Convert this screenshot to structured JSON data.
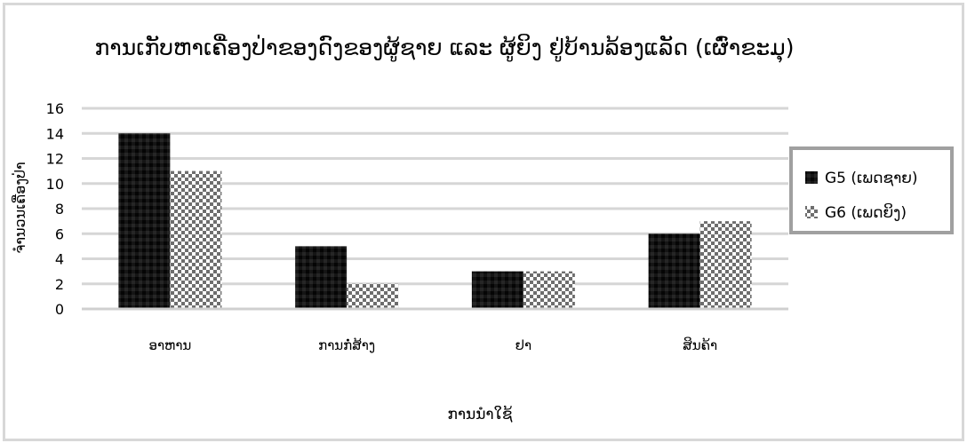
{
  "chart_data": {
    "type": "bar",
    "title": "ການເກັບຫາເຄື່ອງປ່າຂອງດົງຂອງຜູ້ຊາຍ ແລະ ຜູ້ຍິງ ຢູ່ບ້ານລ້ອງແລັດ (ເຜົ່າຂະມຸ)",
    "xlabel": "ການນຳໃຊ້",
    "ylabel": "ຈຳນວນເຄື່ອງປ່າ",
    "categories": [
      "ອາຫານ",
      "ການກໍ່ສ້າງ",
      "ຢາ",
      "ສິນຄ້າ"
    ],
    "series": [
      {
        "name": "G5 (ເພດຊາຍ)",
        "values": [
          14,
          5,
          3,
          6
        ],
        "color": "#111111",
        "pattern": "dark"
      },
      {
        "name": "G6 (ເພດຍິງ)",
        "values": [
          11,
          2,
          3,
          7
        ],
        "color": "#9a9a9a",
        "pattern": "checker"
      }
    ],
    "ylim": [
      0,
      16
    ],
    "yticks": [
      0,
      2,
      4,
      6,
      8,
      10,
      12,
      14,
      16
    ],
    "grid": true,
    "legend_position": "right"
  }
}
